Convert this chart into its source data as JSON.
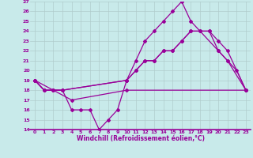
{
  "xlabel": "Windchill (Refroidissement éolien,°C)",
  "bg_color": "#c8eaea",
  "line_color": "#990099",
  "grid_color": "#b0cccc",
  "ylim": [
    14,
    27
  ],
  "xlim": [
    -0.5,
    23.5
  ],
  "yticks": [
    14,
    15,
    16,
    17,
    18,
    19,
    20,
    21,
    22,
    23,
    24,
    25,
    26,
    27
  ],
  "xticks": [
    0,
    1,
    2,
    3,
    4,
    5,
    6,
    7,
    8,
    9,
    10,
    11,
    12,
    13,
    14,
    15,
    16,
    17,
    18,
    19,
    20,
    21,
    22,
    23
  ],
  "line1_x": [
    0,
    1,
    2,
    3,
    4,
    5,
    6,
    7,
    8,
    9,
    10,
    11,
    12,
    13,
    14,
    15,
    16,
    17,
    18,
    20,
    21,
    23
  ],
  "line1_y": [
    19,
    18,
    18,
    18,
    16,
    16,
    16,
    14,
    15,
    16,
    19,
    21,
    23,
    24,
    25,
    26,
    27,
    25,
    24,
    22,
    21,
    18
  ],
  "line2_x": [
    0,
    4,
    10,
    23
  ],
  "line2_y": [
    19,
    17,
    18,
    18
  ],
  "line3_x": [
    0,
    1,
    2,
    3,
    10,
    11,
    12,
    13,
    14,
    15,
    16,
    17,
    19,
    20,
    21,
    23
  ],
  "line3_y": [
    19,
    18,
    18,
    18,
    19,
    20,
    21,
    21,
    22,
    22,
    23,
    24,
    24,
    23,
    22,
    18
  ],
  "line4_x": [
    0,
    1,
    2,
    3,
    10,
    11,
    12,
    13,
    14,
    15,
    16,
    17,
    18,
    19,
    20,
    21,
    22,
    23
  ],
  "line4_y": [
    19,
    18,
    18,
    18,
    19,
    20,
    21,
    21,
    22,
    22,
    23,
    24,
    24,
    24,
    22,
    21,
    20,
    18
  ]
}
